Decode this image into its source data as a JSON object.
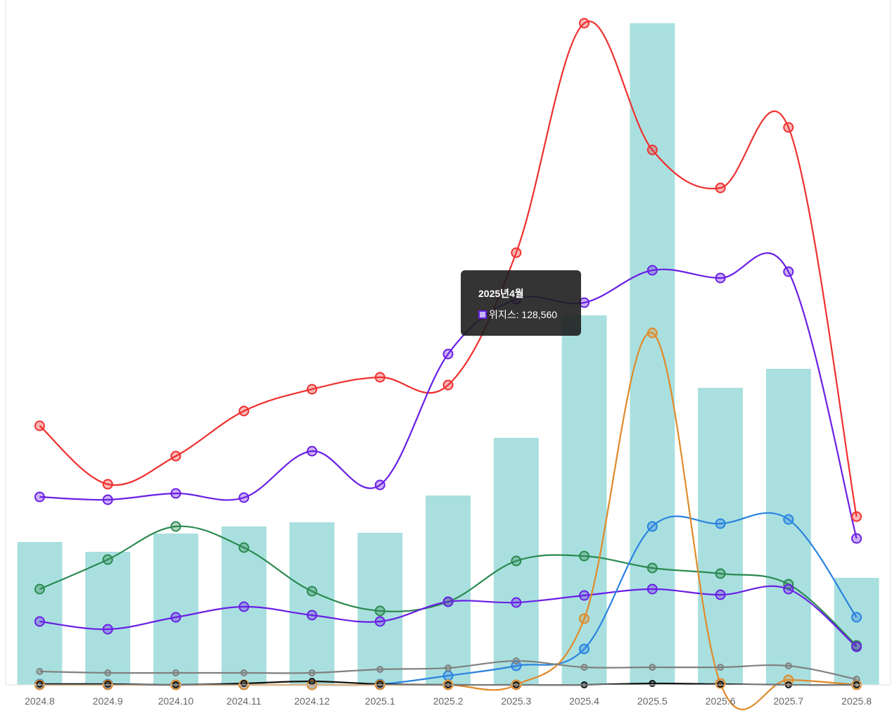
{
  "chart_data": {
    "type": "bar+line",
    "categories": [
      "2024.8",
      "2024.9",
      "2024.10",
      "2024.11",
      "2024.12",
      "2025.1",
      "2025.2",
      "2025.3",
      "2025.4",
      "2025.5",
      "2025.6",
      "2025.7",
      "2025.8"
    ],
    "bar_series": {
      "color": "#a9e0df",
      "values": [
        203,
        189,
        215,
        225,
        231,
        216,
        269,
        351,
        525,
        940,
        422,
        449,
        152
      ]
    },
    "series": [
      {
        "color": "#ef3030",
        "values": [
          368,
          285,
          325,
          389,
          420,
          437,
          426,
          614,
          940,
          760,
          706,
          792,
          239
        ]
      },
      {
        "color": "#6a1fe6",
        "values": [
          267,
          263,
          272,
          266,
          332,
          284,
          470,
          548,
          543,
          589,
          578,
          587,
          208
        ]
      },
      {
        "color": "#2a8a50",
        "values": [
          136,
          178,
          225,
          195,
          133,
          105,
          118,
          176,
          183,
          166,
          158,
          143,
          56
        ]
      },
      {
        "color": "#6a1fe6",
        "values": [
          90,
          79,
          96,
          111,
          99,
          90,
          118,
          117,
          127,
          136,
          128,
          136,
          54
        ]
      },
      {
        "color": "#2a82e0",
        "values": [
          1,
          1,
          0,
          0,
          0,
          1,
          13,
          27,
          51,
          225,
          229,
          235,
          96
        ]
      },
      {
        "color": "#e08a2a",
        "values": [
          0,
          0,
          0,
          0,
          0,
          0,
          0,
          0,
          94,
          500,
          2,
          7,
          0
        ]
      },
      {
        "color": "#808080",
        "values": [
          19,
          17,
          17,
          17,
          17,
          22,
          24,
          34,
          25,
          25,
          25,
          27,
          8
        ]
      },
      {
        "color": "#111111",
        "values": [
          1,
          1,
          0,
          2,
          5,
          1,
          0,
          0,
          0,
          2,
          1,
          0,
          0
        ]
      }
    ],
    "ylim": [
      0,
      940
    ]
  },
  "tooltip": {
    "title": "2025년4월",
    "label": "위지스: 128,560",
    "swatch_color": "#6a1fe6"
  }
}
